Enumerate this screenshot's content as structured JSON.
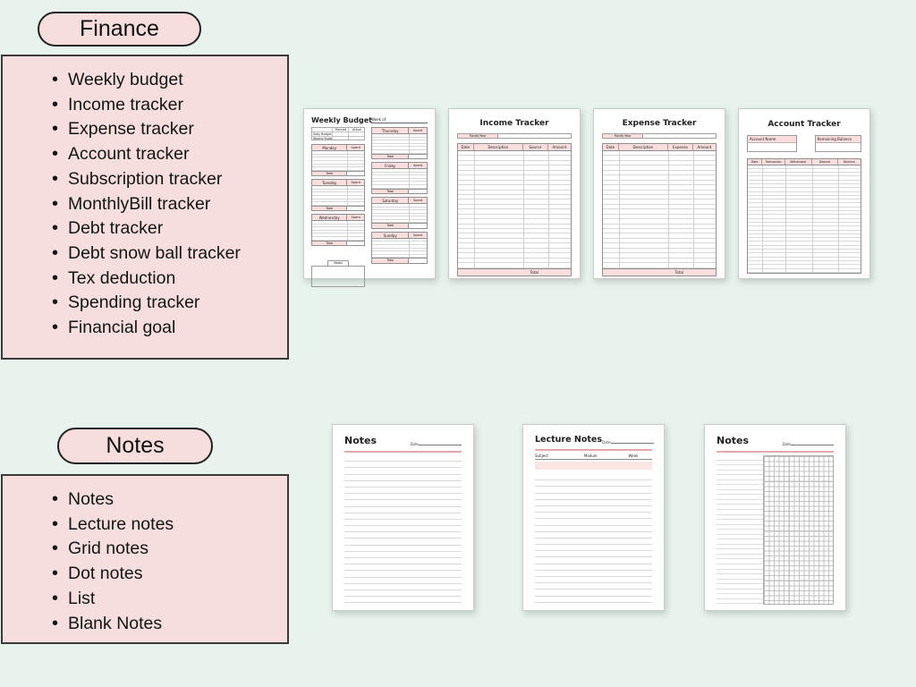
{
  "colors": {
    "bg": "#e7f3ec",
    "pink-box": "#f7dede",
    "pink-pill": "#f8dddd",
    "pink-cell": "#fadede",
    "pink-soft": "#fbe4e4",
    "accent": "#e9a8a8"
  },
  "finance": {
    "title": "Finance",
    "items": [
      "Weekly budget",
      "Income tracker",
      "Expense tracker",
      "Account tracker",
      "Subscription tracker",
      "MonthlyBill tracker",
      "Debt tracker",
      "Debt snow ball tracker",
      "Tex deduction",
      "Spending tracker",
      "Financial goal"
    ]
  },
  "notes": {
    "title": "Notes",
    "items": [
      "Notes",
      "Lecture notes",
      "Grid notes",
      "Dot notes",
      "List",
      "Blank Notes"
    ]
  },
  "weekly_budget": {
    "title": "Weekly Budget",
    "week_of_label": "Week of:",
    "summary": {
      "col1": "Planned",
      "col2": "Actual",
      "row1": "Daily Budget",
      "row2": "Weekly Budget"
    },
    "spent_label": "Spent",
    "total_label": "Total",
    "notes_label": "Notes",
    "left_days": [
      "Monday",
      "Tuesday",
      "Wednesday"
    ],
    "right_days": [
      "Thursday",
      "Friday",
      "Saturday",
      "Sunday"
    ],
    "rows_per_day": 6
  },
  "income_tracker": {
    "title": "Income Tracker",
    "month_label": "Month/Year",
    "headers": [
      "Date",
      "Description",
      "Source",
      "Amount"
    ],
    "total_label": "Total",
    "rows": 24
  },
  "expense_tracker": {
    "title": "Expense Tracker",
    "month_label": "Month/Year",
    "headers": [
      "Date",
      "Description",
      "Expense",
      "Amount"
    ],
    "total_label": "Total",
    "rows": 24
  },
  "account_tracker": {
    "title": "Account Tracker",
    "account_name_label": "Account Name",
    "remaining_balance_label": "Remaining Balance",
    "headers": [
      "Date",
      "Transaction",
      "Withdrawal",
      "Deposit",
      "Balance"
    ],
    "rows": 28
  },
  "notes_page": {
    "title": "Notes",
    "date_label": "Date",
    "lines": 23
  },
  "lecture_notes_page": {
    "title": "Lecture Notes",
    "date_label": "Date",
    "fields": [
      "Subject",
      "Module",
      "Week"
    ],
    "lines": 20
  },
  "grid_notes_page": {
    "title": "Notes",
    "date_label": "Date",
    "lines": 30
  }
}
